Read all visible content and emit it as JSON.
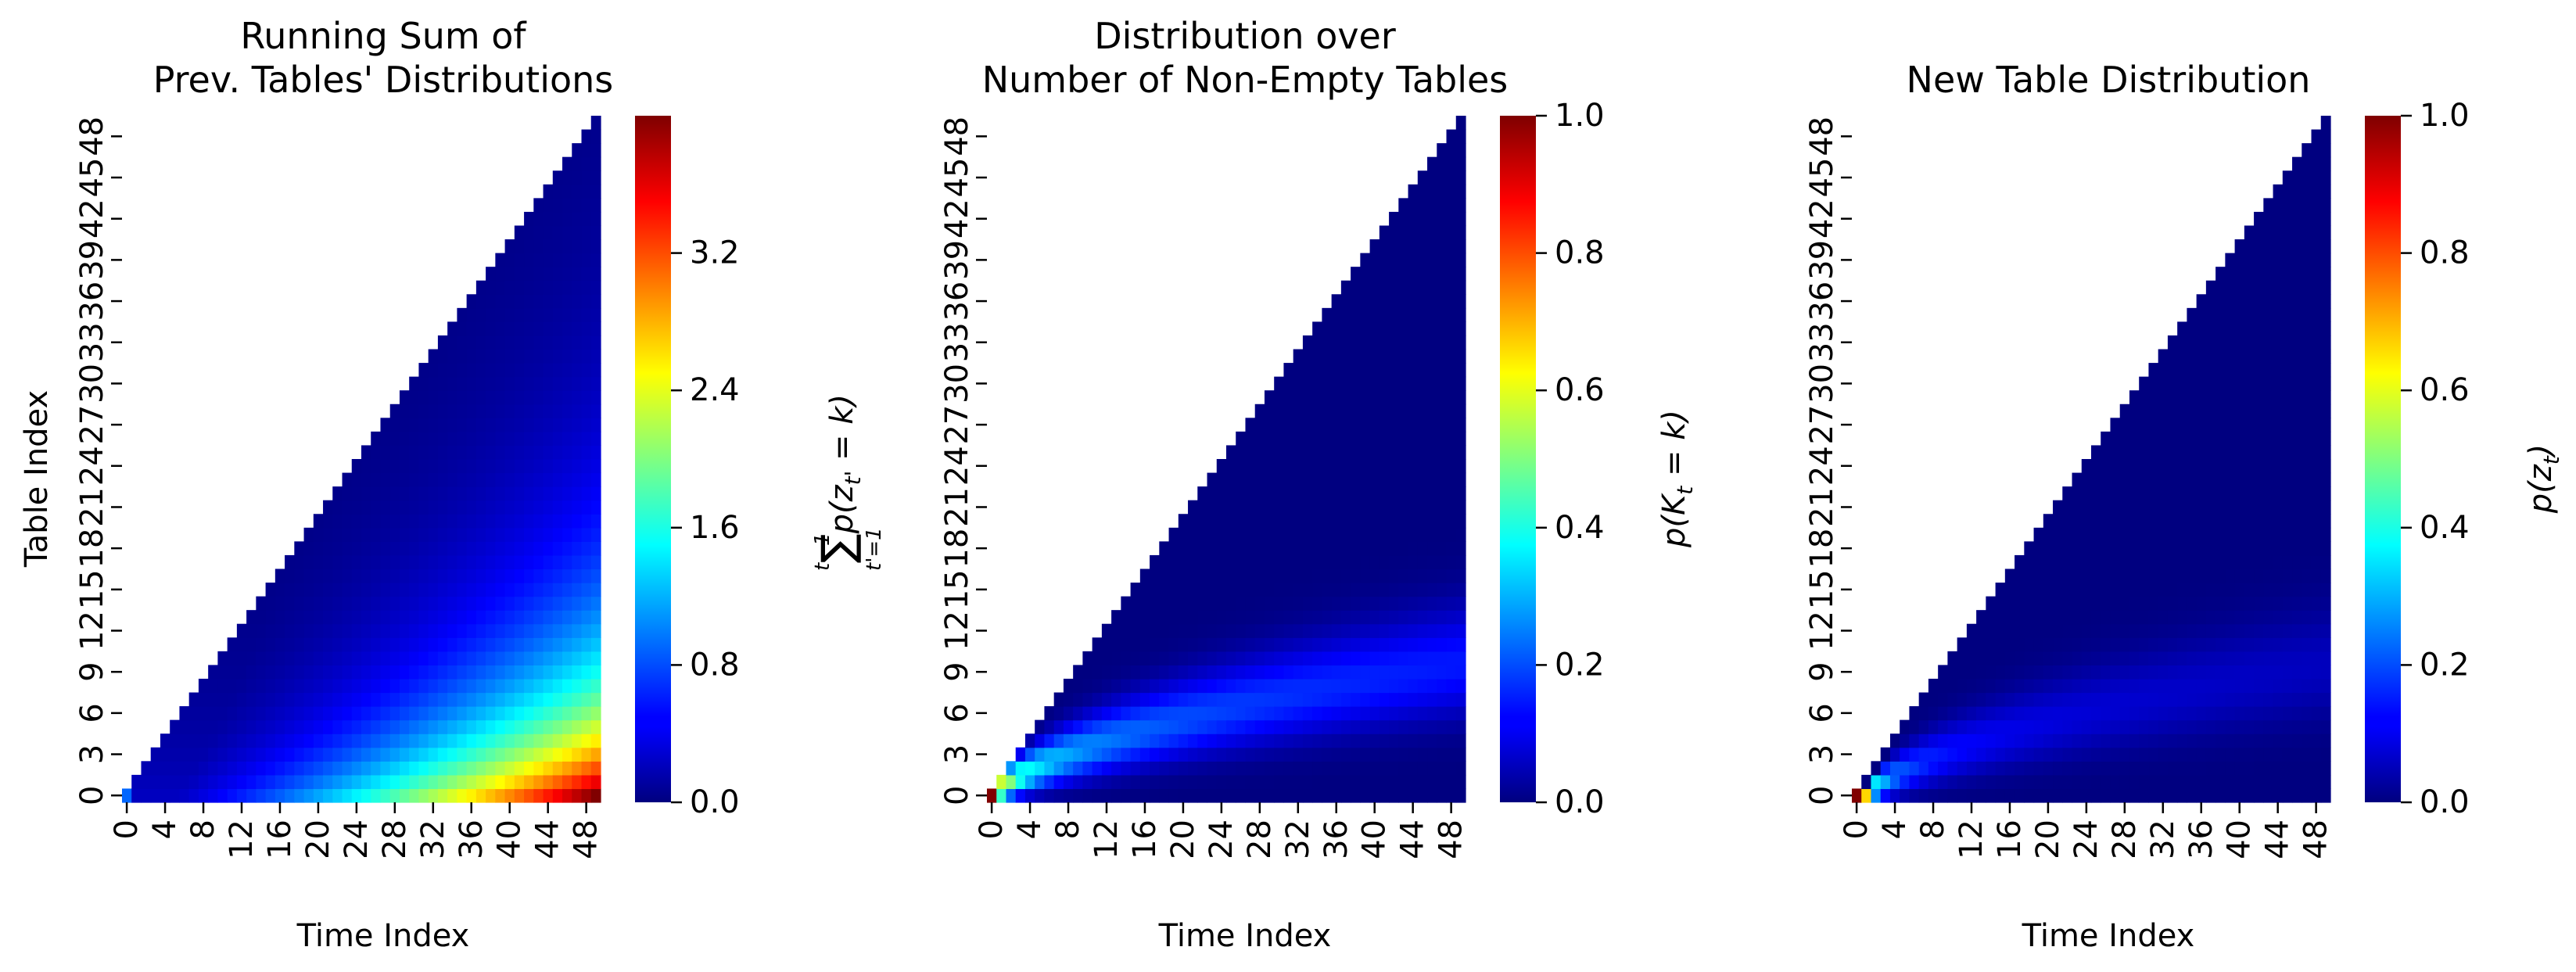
{
  "chart_data": [
    {
      "type": "heatmap",
      "title_lines": [
        "Running Sum of",
        "Prev. Tables' Distributions"
      ],
      "xlabel": "Time Index",
      "ylabel": "Table Index",
      "x_ticks": [
        "0",
        "4",
        "8",
        "12",
        "16",
        "20",
        "24",
        "28",
        "32",
        "36",
        "40",
        "44",
        "48"
      ],
      "y_ticks": [
        "0",
        "3",
        "6",
        "9",
        "12",
        "15",
        "18",
        "21",
        "24",
        "27",
        "30",
        "33",
        "36",
        "39",
        "42",
        "45",
        "48"
      ],
      "colorbar": {
        "label": "∑_{t'=1}^{t−1} p(z_{t'} = k)",
        "range": [
          0,
          4.0
        ],
        "ticks": [
          "0.0",
          "0.8",
          "1.6",
          "2.4",
          "3.2"
        ],
        "tick_values": [
          0,
          0.8,
          1.6,
          2.4,
          3.2
        ]
      },
      "colormap": "jet",
      "n_time": 50,
      "n_tables": 50,
      "mask": "upper triangle (table index > time index) blank",
      "description_of_values": "value grows with time; concentrated near low table indices; max ≈ 4.0 at time 49, table 0"
    },
    {
      "type": "heatmap",
      "title_lines": [
        "Distribution over",
        "Number of Non-Empty Tables"
      ],
      "xlabel": "Time Index",
      "ylabel": "",
      "x_ticks": [
        "0",
        "4",
        "8",
        "12",
        "16",
        "20",
        "24",
        "28",
        "32",
        "36",
        "40",
        "44",
        "48"
      ],
      "y_ticks": [
        "0",
        "3",
        "6",
        "9",
        "12",
        "15",
        "18",
        "21",
        "24",
        "27",
        "30",
        "33",
        "36",
        "39",
        "42",
        "45",
        "48"
      ],
      "colorbar": {
        "label": "p(K_t = k)",
        "range": [
          0,
          1.0
        ],
        "ticks": [
          "0.0",
          "0.2",
          "0.4",
          "0.6",
          "0.8",
          "1.0"
        ],
        "tick_values": [
          0,
          0.2,
          0.4,
          0.6,
          0.8,
          1.0
        ]
      },
      "colormap": "jet",
      "n_time": 50,
      "n_tables": 50,
      "mask": "upper triangle (table index > time index) blank",
      "description_of_values": "p(K_0=0)=1; distribution spreads along a ridge near k ≈ 0.4·t with peak ≈ 0.1 at late times"
    },
    {
      "type": "heatmap",
      "title_lines": [
        "New Table Distribution"
      ],
      "xlabel": "Time Index",
      "ylabel": "",
      "x_ticks": [
        "0",
        "4",
        "8",
        "12",
        "16",
        "20",
        "24",
        "28",
        "32",
        "36",
        "40",
        "44",
        "48"
      ],
      "y_ticks": [
        "0",
        "3",
        "6",
        "9",
        "12",
        "15",
        "18",
        "21",
        "24",
        "27",
        "30",
        "33",
        "36",
        "39",
        "42",
        "45",
        "48"
      ],
      "colorbar": {
        "label": "p(z_t)",
        "range": [
          0,
          1.0
        ],
        "ticks": [
          "0.0",
          "0.2",
          "0.4",
          "0.6",
          "0.8",
          "1.0"
        ],
        "tick_values": [
          0,
          0.2,
          0.4,
          0.6,
          0.8,
          1.0
        ]
      },
      "colormap": "jet",
      "n_time": 50,
      "n_tables": 50,
      "mask": "upper triangle (table index > time index) blank",
      "description_of_values": "p(z_0=0)=1; mass moves along diagonal then spreads; peak ≈ 0.1 at late times"
    }
  ],
  "colors": {
    "background": "#ffffff",
    "text": "#000000"
  }
}
